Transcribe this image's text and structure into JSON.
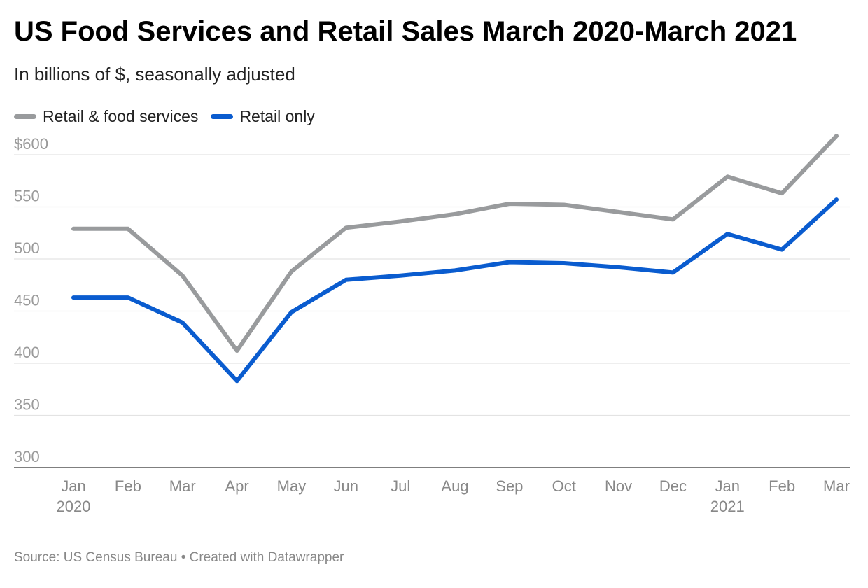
{
  "header": {
    "title": "US Food Services and Retail Sales March 2020-March 2021",
    "subtitle": "In billions of $, seasonally adjusted"
  },
  "legend": {
    "items": [
      {
        "label": "Retail & food services",
        "color": "#999b9d"
      },
      {
        "label": "Retail only",
        "color": "#0a5ccf"
      }
    ]
  },
  "footer": {
    "source": "Source: US Census Bureau",
    "separator": "•",
    "credit": "Created with Datawrapper"
  },
  "chart_data": {
    "type": "line",
    "title": "US Food Services and Retail Sales March 2020-March 2021",
    "subtitle": "In billions of $, seasonally adjusted",
    "x": [
      "Jan 2020",
      "Feb 2020",
      "Mar 2020",
      "Apr 2020",
      "May 2020",
      "Jun 2020",
      "Jul 2020",
      "Aug 2020",
      "Sep 2020",
      "Oct 2020",
      "Nov 2020",
      "Dec 2020",
      "Jan 2021",
      "Feb 2021",
      "Mar 2021"
    ],
    "x_tick_labels": [
      {
        "month": "Jan",
        "year": "2020"
      },
      {
        "month": "Feb",
        "year": ""
      },
      {
        "month": "Mar",
        "year": ""
      },
      {
        "month": "Apr",
        "year": ""
      },
      {
        "month": "May",
        "year": ""
      },
      {
        "month": "Jun",
        "year": ""
      },
      {
        "month": "Jul",
        "year": ""
      },
      {
        "month": "Aug",
        "year": ""
      },
      {
        "month": "Sep",
        "year": ""
      },
      {
        "month": "Oct",
        "year": ""
      },
      {
        "month": "Nov",
        "year": ""
      },
      {
        "month": "Dec",
        "year": ""
      },
      {
        "month": "Jan",
        "year": "2021"
      },
      {
        "month": "Feb",
        "year": ""
      },
      {
        "month": "Mar",
        "year": ""
      }
    ],
    "series": [
      {
        "name": "Retail & food services",
        "color": "#999b9d",
        "values": [
          529,
          529,
          484,
          412,
          488,
          530,
          536,
          543,
          553,
          552,
          545,
          538,
          579,
          563,
          618
        ]
      },
      {
        "name": "Retail only",
        "color": "#0a5ccf",
        "values": [
          463,
          463,
          439,
          383,
          449,
          480,
          484,
          489,
          497,
          496,
          492,
          487,
          524,
          509,
          557
        ]
      }
    ],
    "ylim": [
      300,
      620
    ],
    "y_ticks": [
      300,
      350,
      400,
      450,
      500,
      550,
      600
    ],
    "y_tick_labels": [
      "300",
      "350",
      "400",
      "450",
      "500",
      "550",
      "$600"
    ],
    "xlabel": "",
    "ylabel": "",
    "grid": true,
    "legend_position": "top-left"
  }
}
